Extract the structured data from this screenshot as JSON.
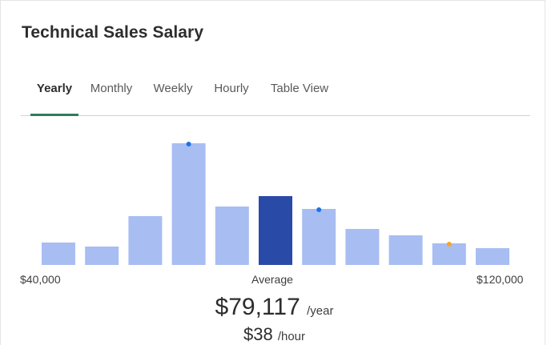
{
  "title": "Technical Sales Salary",
  "tabs": [
    {
      "label": "Yearly",
      "active": true
    },
    {
      "label": "Monthly",
      "active": false
    },
    {
      "label": "Weekly",
      "active": false
    },
    {
      "label": "Hourly",
      "active": false
    },
    {
      "label": "Table View",
      "active": false
    }
  ],
  "colors": {
    "bar": "#a8bdf2",
    "bar_highlight": "#2a4aa8",
    "tab_underline": "#2e7d5a",
    "dot_blue": "#1a73e8",
    "dot_orange": "#f5a623"
  },
  "chart_data": {
    "type": "bar",
    "title": "",
    "x_min_label": "$40,000",
    "x_mid_label": "Average",
    "x_max_label": "$120,000",
    "values": [
      28,
      23,
      61,
      152,
      73,
      86,
      70,
      45,
      37,
      27,
      21
    ],
    "highlight_index": 5,
    "markers": [
      {
        "bar": 3,
        "color": "blue"
      },
      {
        "bar": 6,
        "color": "blue"
      },
      {
        "bar": 9,
        "color": "orange"
      }
    ],
    "ylim": [
      0,
      160
    ]
  },
  "salary": {
    "yearly_value": "$79,117",
    "yearly_unit": "/year",
    "hourly_value": "$38",
    "hourly_unit": "/hour"
  }
}
